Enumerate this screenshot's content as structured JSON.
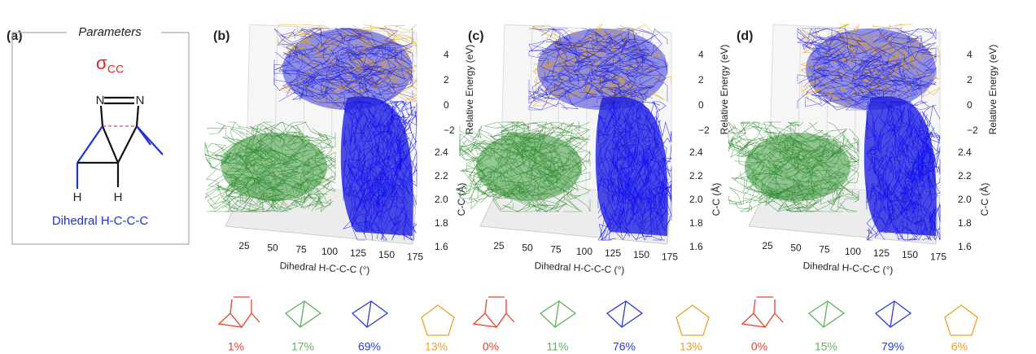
{
  "panel_a": {
    "label": "(a)",
    "box_title": "Parameters",
    "sigma": "σ",
    "sigma_sub": "CC",
    "atoms": [
      "N",
      "N",
      "H",
      "H"
    ],
    "dihedral": "Dihedral H-C-C-C"
  },
  "panels": [
    {
      "label": "(b)",
      "x_axis": "Dihedral H-C-C-C (°)",
      "x_ticks": [
        "25",
        "50",
        "75",
        "100",
        "125",
        "150",
        "175"
      ],
      "energy_axis": "Relative Energy (eV)",
      "energy_ticks": [
        "4",
        "2",
        "0",
        "−2"
      ],
      "cc_axis": "C-C (Å)",
      "cc_ticks": [
        "2.4",
        "2.2",
        "2.0",
        "1.8",
        "1.6"
      ],
      "populations": [
        "1%",
        "17%",
        "69%",
        "13%"
      ]
    },
    {
      "label": "(c)",
      "x_axis": "Dihedral H-C-C-C (°)",
      "x_ticks": [
        "25",
        "50",
        "75",
        "100",
        "125",
        "150",
        "175"
      ],
      "energy_axis": "Relative Energy (eV)",
      "energy_ticks": [
        "4",
        "2",
        "0",
        "−2"
      ],
      "cc_axis": "C-C (Å)",
      "cc_ticks": [
        "2.4",
        "2.2",
        "2.0",
        "1.8",
        "1.6"
      ],
      "populations": [
        "0%",
        "11%",
        "76%",
        "13%"
      ]
    },
    {
      "label": "(d)",
      "x_axis": "Dihedral H-C-C-C (°)",
      "x_ticks": [
        "25",
        "50",
        "75",
        "100",
        "125",
        "150",
        "175"
      ],
      "energy_axis": "Relative Energy (eV)",
      "energy_ticks": [
        "4",
        "2",
        "0",
        "−2"
      ],
      "cc_axis": "C-C (Å)",
      "cc_ticks": [
        "2.4",
        "2.2",
        "2.0",
        "1.8",
        "1.6"
      ],
      "populations": [
        "0%",
        "15%",
        "79%",
        "6%"
      ]
    }
  ]
}
